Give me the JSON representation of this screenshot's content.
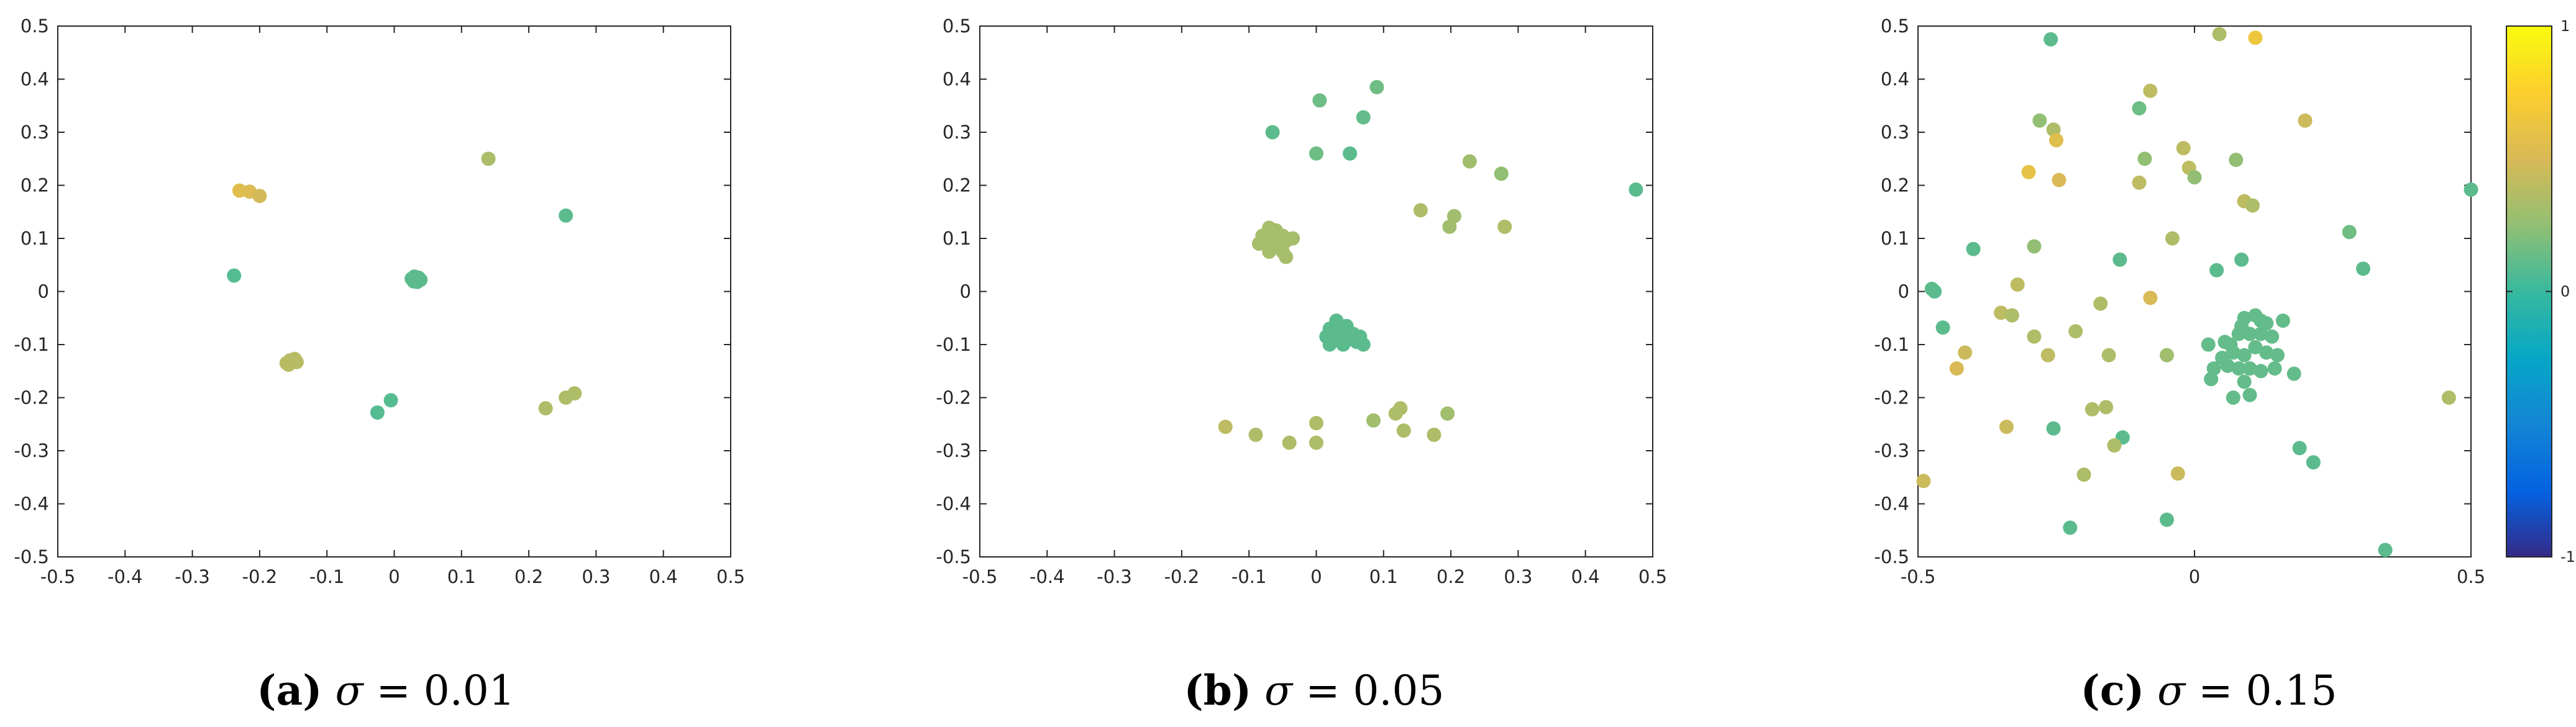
{
  "captions": [
    {
      "letter": "a",
      "sigma_symbol": "σ",
      "equals": " = ",
      "value": "0.01"
    },
    {
      "letter": "b",
      "sigma_symbol": "σ",
      "equals": " = ",
      "value": "0.05"
    },
    {
      "letter": "c",
      "sigma_symbol": "σ",
      "equals": " = ",
      "value": "0.15"
    }
  ],
  "colorbar": {
    "range": [
      -1,
      1
    ],
    "tick_labels": [
      "1",
      "0",
      "-1"
    ],
    "colormap": [
      "#352a87",
      "#0363e1",
      "#1485d4",
      "#06a7c6",
      "#38b99e",
      "#92bf73",
      "#d9ba56",
      "#fcce2e",
      "#f9fb0e"
    ]
  },
  "chart_data": [
    {
      "type": "scatter",
      "xlim": [
        -0.5,
        0.5
      ],
      "ylim": [
        -0.5,
        0.5
      ],
      "xticks": [
        "-0.5",
        "-0.4",
        "-0.3",
        "-0.2",
        "-0.1",
        "0",
        "0.1",
        "0.2",
        "0.3",
        "0.4",
        "0.5"
      ],
      "yticks": [
        "-0.5",
        "-0.4",
        "-0.3",
        "-0.2",
        "-0.1",
        "0",
        "0.1",
        "0.2",
        "0.3",
        "0.4",
        "0.5"
      ],
      "grid": false,
      "points": [
        [
          -0.23,
          0.19,
          0.55
        ],
        [
          -0.215,
          0.188,
          0.52
        ],
        [
          -0.2,
          0.18,
          0.48
        ],
        [
          0.14,
          0.25,
          0.34
        ],
        [
          0.255,
          0.143,
          0.1
        ],
        [
          -0.238,
          0.03,
          0.08
        ],
        [
          0.026,
          0.024,
          0.1
        ],
        [
          0.03,
          0.028,
          0.1
        ],
        [
          0.033,
          0.022,
          0.1
        ],
        [
          0.036,
          0.026,
          0.1
        ],
        [
          0.029,
          0.019,
          0.1
        ],
        [
          0.034,
          0.018,
          0.1
        ],
        [
          0.039,
          0.022,
          0.1
        ],
        [
          -0.16,
          -0.135,
          0.38
        ],
        [
          -0.155,
          -0.13,
          0.38
        ],
        [
          -0.15,
          -0.132,
          0.38
        ],
        [
          -0.148,
          -0.127,
          0.38
        ],
        [
          -0.157,
          -0.138,
          0.38
        ],
        [
          -0.145,
          -0.133,
          0.38
        ],
        [
          -0.005,
          -0.205,
          0.08
        ],
        [
          -0.025,
          -0.228,
          0.08
        ],
        [
          0.225,
          -0.22,
          0.35
        ],
        [
          0.255,
          -0.2,
          0.35
        ],
        [
          0.268,
          -0.192,
          0.35
        ]
      ]
    },
    {
      "type": "scatter",
      "xlim": [
        -0.5,
        0.5
      ],
      "ylim": [
        -0.5,
        0.5
      ],
      "xticks": [
        "-0.5",
        "-0.4",
        "-0.3",
        "-0.2",
        "-0.1",
        "0",
        "0.1",
        "0.2",
        "0.3",
        "0.4",
        "0.5"
      ],
      "yticks": [
        "-0.5",
        "-0.4",
        "-0.3",
        "-0.2",
        "-0.1",
        "0",
        "0.1",
        "0.2",
        "0.3",
        "0.4",
        "0.5"
      ],
      "grid": false,
      "points": [
        [
          0.09,
          0.385,
          0.15
        ],
        [
          0.005,
          0.36,
          0.15
        ],
        [
          0.07,
          0.328,
          0.12
        ],
        [
          -0.065,
          0.3,
          0.1
        ],
        [
          0.0,
          0.26,
          0.15
        ],
        [
          0.05,
          0.26,
          0.1
        ],
        [
          0.228,
          0.245,
          0.3
        ],
        [
          0.275,
          0.222,
          0.25
        ],
        [
          0.155,
          0.153,
          0.35
        ],
        [
          0.205,
          0.142,
          0.3
        ],
        [
          0.475,
          0.192,
          0.1
        ],
        [
          0.198,
          0.122,
          0.3
        ],
        [
          0.28,
          0.122,
          0.35
        ],
        [
          -0.07,
          0.12,
          0.32
        ],
        [
          -0.06,
          0.115,
          0.32
        ],
        [
          -0.08,
          0.105,
          0.32
        ],
        [
          -0.05,
          0.105,
          0.32
        ],
        [
          -0.065,
          0.1,
          0.32
        ],
        [
          -0.075,
          0.095,
          0.32
        ],
        [
          -0.055,
          0.09,
          0.32
        ],
        [
          -0.085,
          0.09,
          0.32
        ],
        [
          -0.045,
          0.095,
          0.32
        ],
        [
          -0.065,
          0.085,
          0.32
        ],
        [
          -0.07,
          0.075,
          0.32
        ],
        [
          -0.05,
          0.075,
          0.32
        ],
        [
          -0.035,
          0.1,
          0.32
        ],
        [
          -0.045,
          0.065,
          0.32
        ],
        [
          0.02,
          -0.07,
          0.1
        ],
        [
          0.03,
          -0.055,
          0.1
        ],
        [
          0.045,
          -0.065,
          0.1
        ],
        [
          0.055,
          -0.08,
          0.1
        ],
        [
          0.015,
          -0.085,
          0.1
        ],
        [
          0.025,
          -0.09,
          0.1
        ],
        [
          0.04,
          -0.1,
          0.1
        ],
        [
          0.06,
          -0.095,
          0.1
        ],
        [
          0.07,
          -0.1,
          0.1
        ],
        [
          0.035,
          -0.075,
          0.1
        ],
        [
          0.05,
          -0.09,
          0.1
        ],
        [
          0.065,
          -0.085,
          0.1
        ],
        [
          0.02,
          -0.1,
          0.1
        ],
        [
          -0.135,
          -0.255,
          0.4
        ],
        [
          -0.09,
          -0.27,
          0.35
        ],
        [
          -0.04,
          -0.285,
          0.35
        ],
        [
          0.0,
          -0.285,
          0.35
        ],
        [
          0.0,
          -0.248,
          0.35
        ],
        [
          0.085,
          -0.243,
          0.3
        ],
        [
          0.118,
          -0.23,
          0.35
        ],
        [
          0.125,
          -0.22,
          0.35
        ],
        [
          0.13,
          -0.262,
          0.35
        ],
        [
          0.175,
          -0.27,
          0.35
        ],
        [
          0.195,
          -0.23,
          0.3
        ]
      ]
    },
    {
      "type": "scatter",
      "xlim": [
        -0.5,
        0.5
      ],
      "ylim": [
        -0.5,
        0.5
      ],
      "xticks": [
        "-0.5",
        "0",
        "0.5"
      ],
      "yticks": [
        "-0.5",
        "-0.4",
        "-0.3",
        "-0.2",
        "-0.1",
        "0",
        "0.1",
        "0.2",
        "0.3",
        "0.4",
        "0.5"
      ],
      "grid": false,
      "points": [
        [
          -0.26,
          0.475,
          0.1
        ],
        [
          0.045,
          0.485,
          0.35
        ],
        [
          0.11,
          0.478,
          0.65
        ],
        [
          -0.08,
          0.378,
          0.4
        ],
        [
          -0.1,
          0.345,
          0.15
        ],
        [
          -0.28,
          0.322,
          0.25
        ],
        [
          0.2,
          0.322,
          0.45
        ],
        [
          -0.255,
          0.305,
          0.35
        ],
        [
          -0.25,
          0.285,
          0.55
        ],
        [
          -0.02,
          0.27,
          0.4
        ],
        [
          -0.3,
          0.225,
          0.6
        ],
        [
          0.075,
          0.248,
          0.25
        ],
        [
          -0.09,
          0.25,
          0.25
        ],
        [
          -0.01,
          0.233,
          0.4
        ],
        [
          -0.245,
          0.21,
          0.5
        ],
        [
          -0.1,
          0.205,
          0.4
        ],
        [
          0.0,
          0.215,
          0.25
        ],
        [
          0.09,
          0.17,
          0.4
        ],
        [
          0.105,
          0.162,
          0.35
        ],
        [
          -0.4,
          0.08,
          0.1
        ],
        [
          -0.32,
          0.013,
          0.4
        ],
        [
          -0.04,
          0.1,
          0.35
        ],
        [
          0.28,
          0.112,
          0.15
        ],
        [
          -0.29,
          0.085,
          0.25
        ],
        [
          -0.135,
          0.06,
          0.1
        ],
        [
          0.085,
          0.06,
          0.1
        ],
        [
          0.04,
          0.04,
          0.1
        ],
        [
          0.305,
          0.043,
          0.1
        ],
        [
          -0.475,
          0.005,
          0.1
        ],
        [
          -0.47,
          0.0,
          0.1
        ],
        [
          -0.08,
          -0.012,
          0.5
        ],
        [
          -0.17,
          -0.023,
          0.35
        ],
        [
          -0.35,
          -0.04,
          0.4
        ],
        [
          -0.33,
          -0.045,
          0.35
        ],
        [
          -0.455,
          -0.068,
          0.1
        ],
        [
          -0.29,
          -0.085,
          0.35
        ],
        [
          -0.215,
          -0.075,
          0.35
        ],
        [
          -0.415,
          -0.115,
          0.45
        ],
        [
          -0.265,
          -0.12,
          0.4
        ],
        [
          -0.155,
          -0.12,
          0.35
        ],
        [
          -0.05,
          -0.12,
          0.3
        ],
        [
          -0.43,
          -0.145,
          0.5
        ],
        [
          0.5,
          0.192,
          0.1
        ],
        [
          -0.185,
          -0.222,
          0.35
        ],
        [
          -0.16,
          -0.218,
          0.35
        ],
        [
          0.46,
          -0.2,
          0.35
        ],
        [
          -0.34,
          -0.255,
          0.45
        ],
        [
          -0.255,
          -0.258,
          0.1
        ],
        [
          -0.13,
          -0.275,
          0.1
        ],
        [
          -0.145,
          -0.29,
          0.35
        ],
        [
          0.19,
          -0.295,
          0.1
        ],
        [
          0.215,
          -0.322,
          0.1
        ],
        [
          -0.2,
          -0.345,
          0.35
        ],
        [
          -0.03,
          -0.343,
          0.45
        ],
        [
          -0.49,
          -0.357,
          0.45
        ],
        [
          -0.05,
          -0.43,
          0.1
        ],
        [
          -0.225,
          -0.445,
          0.1
        ],
        [
          0.345,
          -0.487,
          0.1
        ],
        [
          0.09,
          -0.05,
          0.12
        ],
        [
          0.11,
          -0.045,
          0.12
        ],
        [
          0.13,
          -0.06,
          0.12
        ],
        [
          0.16,
          -0.055,
          0.12
        ],
        [
          0.065,
          -0.1,
          0.12
        ],
        [
          0.08,
          -0.08,
          0.12
        ],
        [
          0.1,
          -0.08,
          0.12
        ],
        [
          0.12,
          -0.08,
          0.12
        ],
        [
          0.14,
          -0.085,
          0.12
        ],
        [
          0.05,
          -0.125,
          0.12
        ],
        [
          0.07,
          -0.115,
          0.12
        ],
        [
          0.09,
          -0.12,
          0.12
        ],
        [
          0.11,
          -0.105,
          0.12
        ],
        [
          0.13,
          -0.115,
          0.12
        ],
        [
          0.15,
          -0.12,
          0.12
        ],
        [
          0.035,
          -0.145,
          0.12
        ],
        [
          0.06,
          -0.14,
          0.12
        ],
        [
          0.08,
          -0.145,
          0.12
        ],
        [
          0.1,
          -0.145,
          0.12
        ],
        [
          0.12,
          -0.15,
          0.12
        ],
        [
          0.145,
          -0.145,
          0.12
        ],
        [
          0.18,
          -0.155,
          0.12
        ],
        [
          0.03,
          -0.165,
          0.12
        ],
        [
          0.09,
          -0.17,
          0.12
        ],
        [
          0.07,
          -0.2,
          0.12
        ],
        [
          0.1,
          -0.195,
          0.12
        ],
        [
          0.025,
          -0.1,
          0.12
        ],
        [
          0.055,
          -0.095,
          0.12
        ],
        [
          0.085,
          -0.065,
          0.12
        ],
        [
          0.12,
          -0.055,
          0.12
        ]
      ]
    }
  ]
}
